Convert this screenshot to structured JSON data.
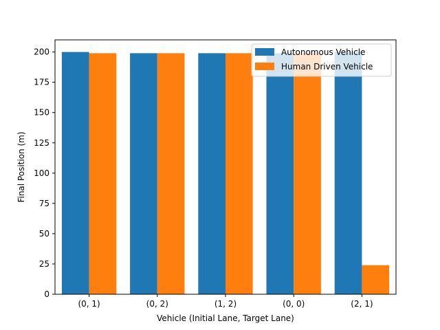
{
  "chart_data": {
    "type": "bar",
    "categories": [
      "(0, 1)",
      "(0, 2)",
      "(1, 2)",
      "(0, 0)",
      "(2, 1)"
    ],
    "series": [
      {
        "name": "Autonomous Vehicle",
        "values": [
          200,
          199,
          199,
          199,
          200
        ],
        "color": "#1f77b4"
      },
      {
        "name": "Human Driven Vehicle",
        "values": [
          199,
          199,
          199,
          199,
          24
        ],
        "color": "#ff7f0e"
      }
    ],
    "title": "",
    "xlabel": "Vehicle (Initial Lane, Target Lane)",
    "ylabel": "Final Position (m)",
    "ylim": [
      0,
      210
    ],
    "yticks": [
      0,
      25,
      50,
      75,
      100,
      125,
      150,
      175,
      200
    ],
    "grid": false,
    "legend_position": "upper-right"
  }
}
